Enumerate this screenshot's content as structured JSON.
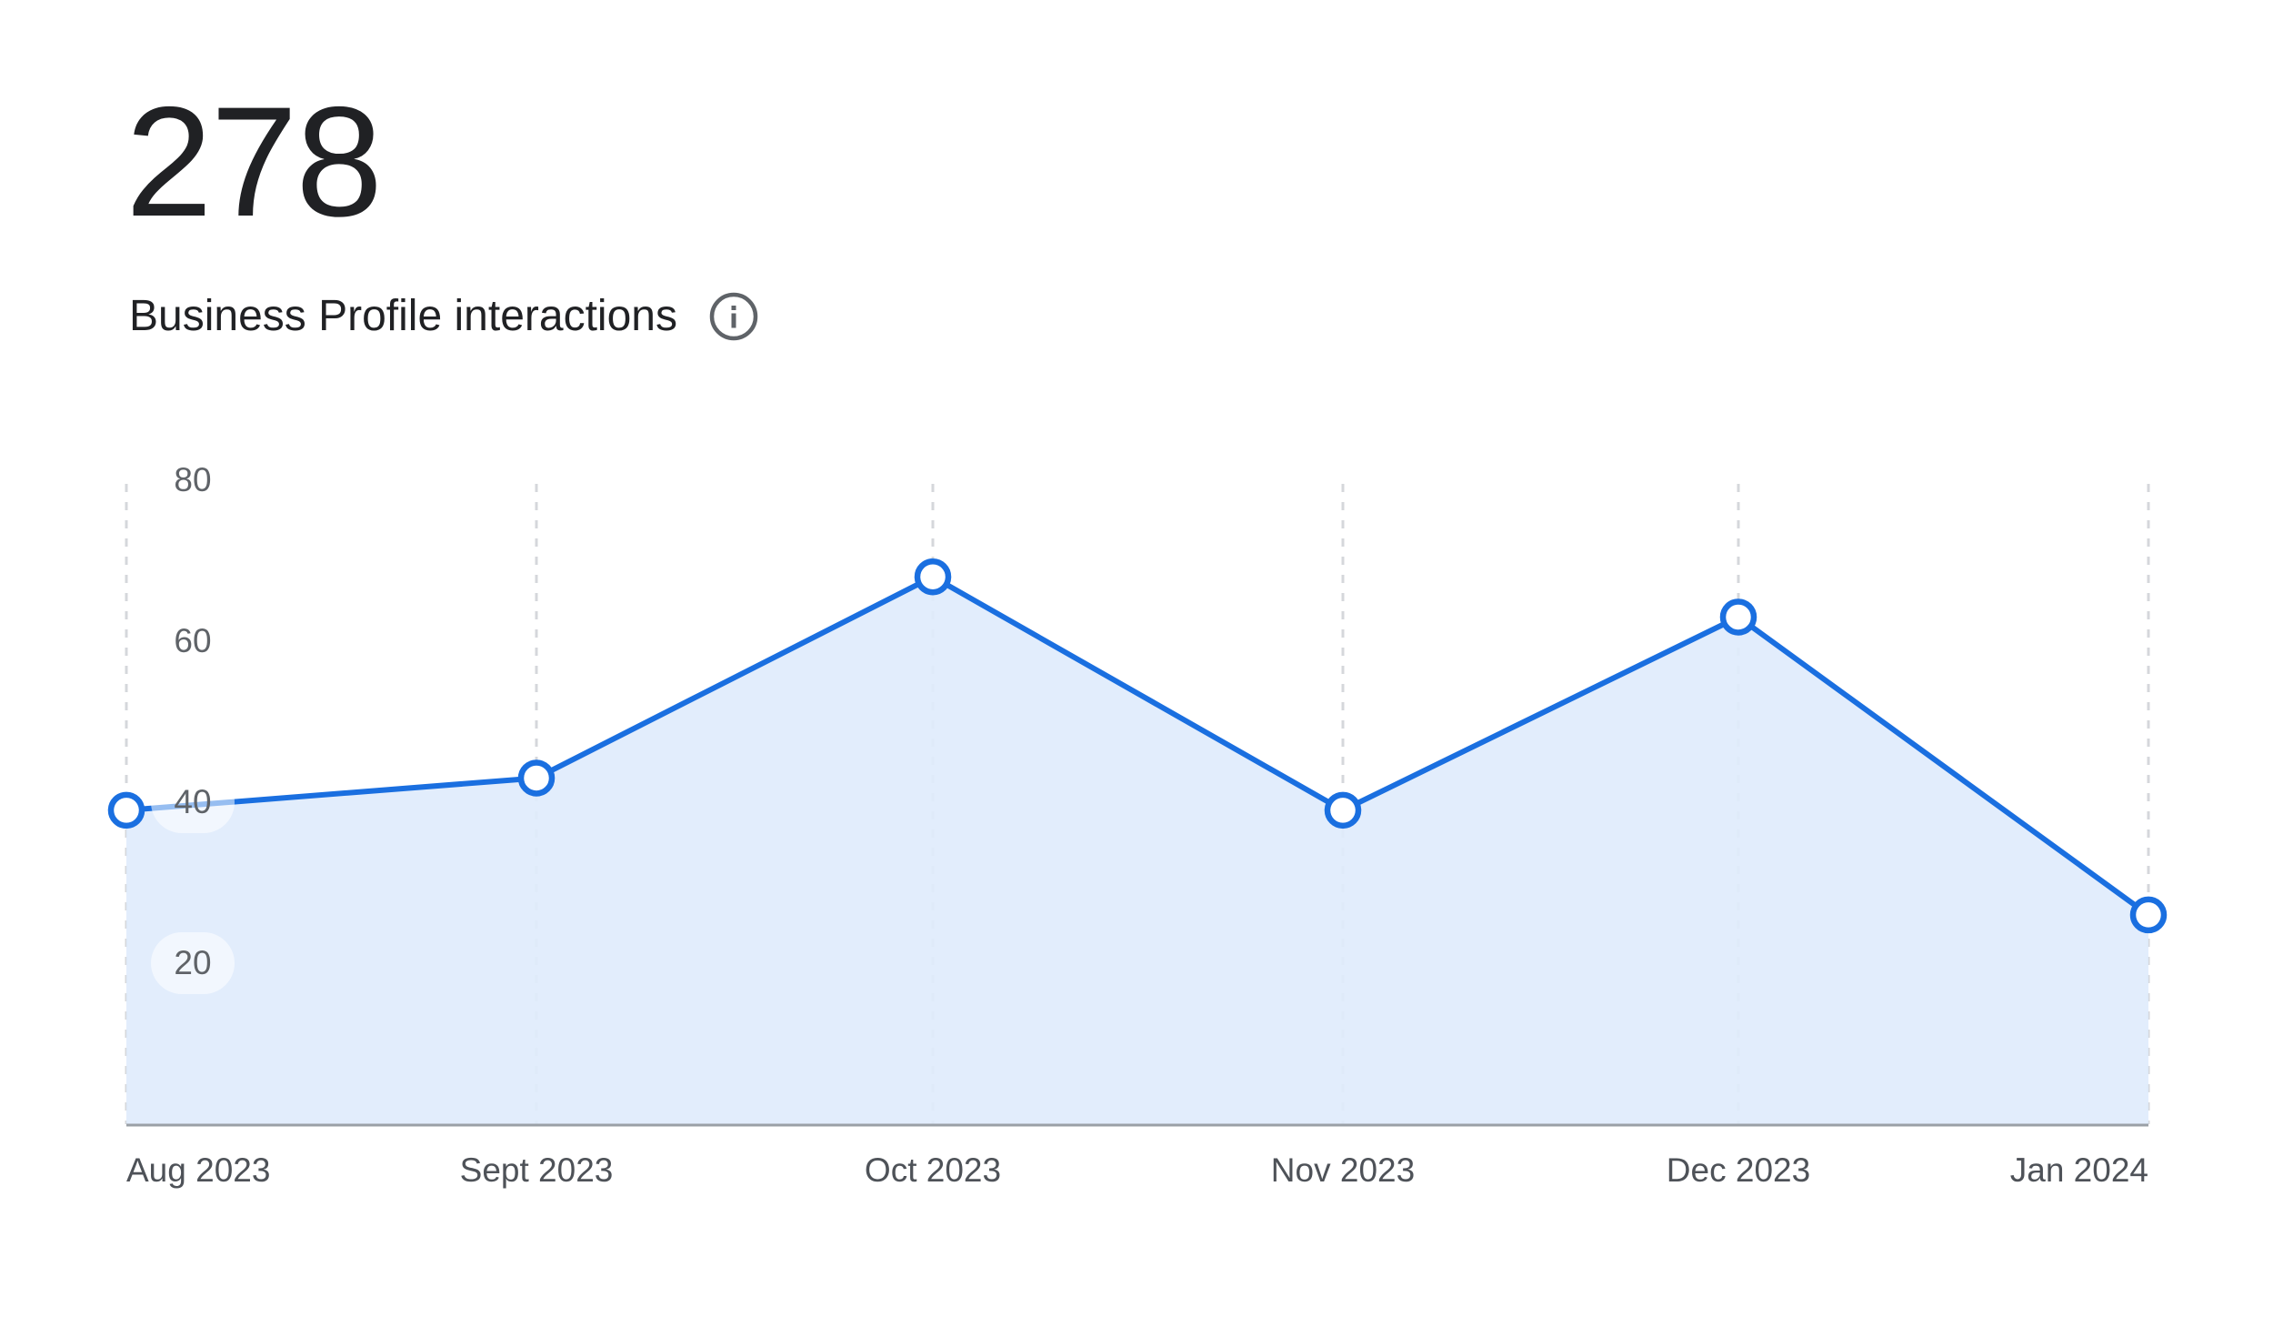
{
  "header": {
    "value": "278",
    "label": "Business Profile interactions",
    "info_icon": "info-circle-icon"
  },
  "colors": {
    "line": "#1a6fe0",
    "area_fill": "#e0ecfc",
    "grid": "#d5d7db",
    "axis": "#9aa0a6",
    "text_primary": "#202124",
    "text_secondary": "#5f6368"
  },
  "y_ticks": [
    {
      "value": 80,
      "label": "80"
    },
    {
      "value": 60,
      "label": "60"
    },
    {
      "value": 40,
      "label": "40"
    },
    {
      "value": 20,
      "label": "20"
    }
  ],
  "x_ticks": [
    {
      "label": "Aug 2023"
    },
    {
      "label": "Sept 2023"
    },
    {
      "label": "Oct 2023"
    },
    {
      "label": "Nov 2023"
    },
    {
      "label": "Dec 2023"
    },
    {
      "label": "Jan 2024"
    }
  ],
  "chart_data": {
    "type": "area",
    "title": "Business Profile interactions",
    "total": 278,
    "categories": [
      "Aug 2023",
      "Sept 2023",
      "Oct 2023",
      "Nov 2023",
      "Dec 2023",
      "Jan 2024"
    ],
    "series": [
      {
        "name": "Business Profile interactions",
        "values": [
          39,
          43,
          68,
          39,
          63,
          26
        ]
      }
    ],
    "xlabel": "",
    "ylabel": "",
    "ylim": [
      0,
      80
    ],
    "yticks": [
      20,
      40,
      60,
      80
    ],
    "grid": {
      "vertical": true,
      "horizontal": false,
      "style": "dashed"
    },
    "markers": "hollow-circle",
    "legend": "none"
  }
}
